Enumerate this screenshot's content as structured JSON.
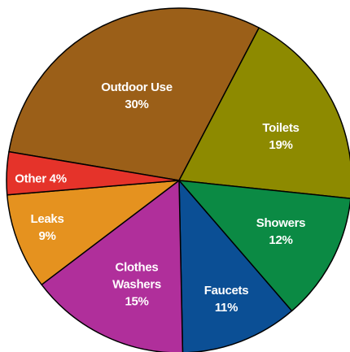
{
  "chart_data": {
    "type": "pie",
    "categories": [
      "Outdoor Use",
      "Toilets",
      "Showers",
      "Faucets",
      "Clothes Washers",
      "Leaks",
      "Other"
    ],
    "values": [
      30,
      19,
      12,
      11,
      15,
      9,
      4
    ],
    "value_labels": [
      "30%",
      "19%",
      "12%",
      "11%",
      "15%",
      "9%",
      "4%"
    ],
    "colors": [
      "#9b5f18",
      "#8d8a00",
      "#0b8a44",
      "#0b4f95",
      "#b02f9b",
      "#e5921f",
      "#e5332a"
    ]
  }
}
